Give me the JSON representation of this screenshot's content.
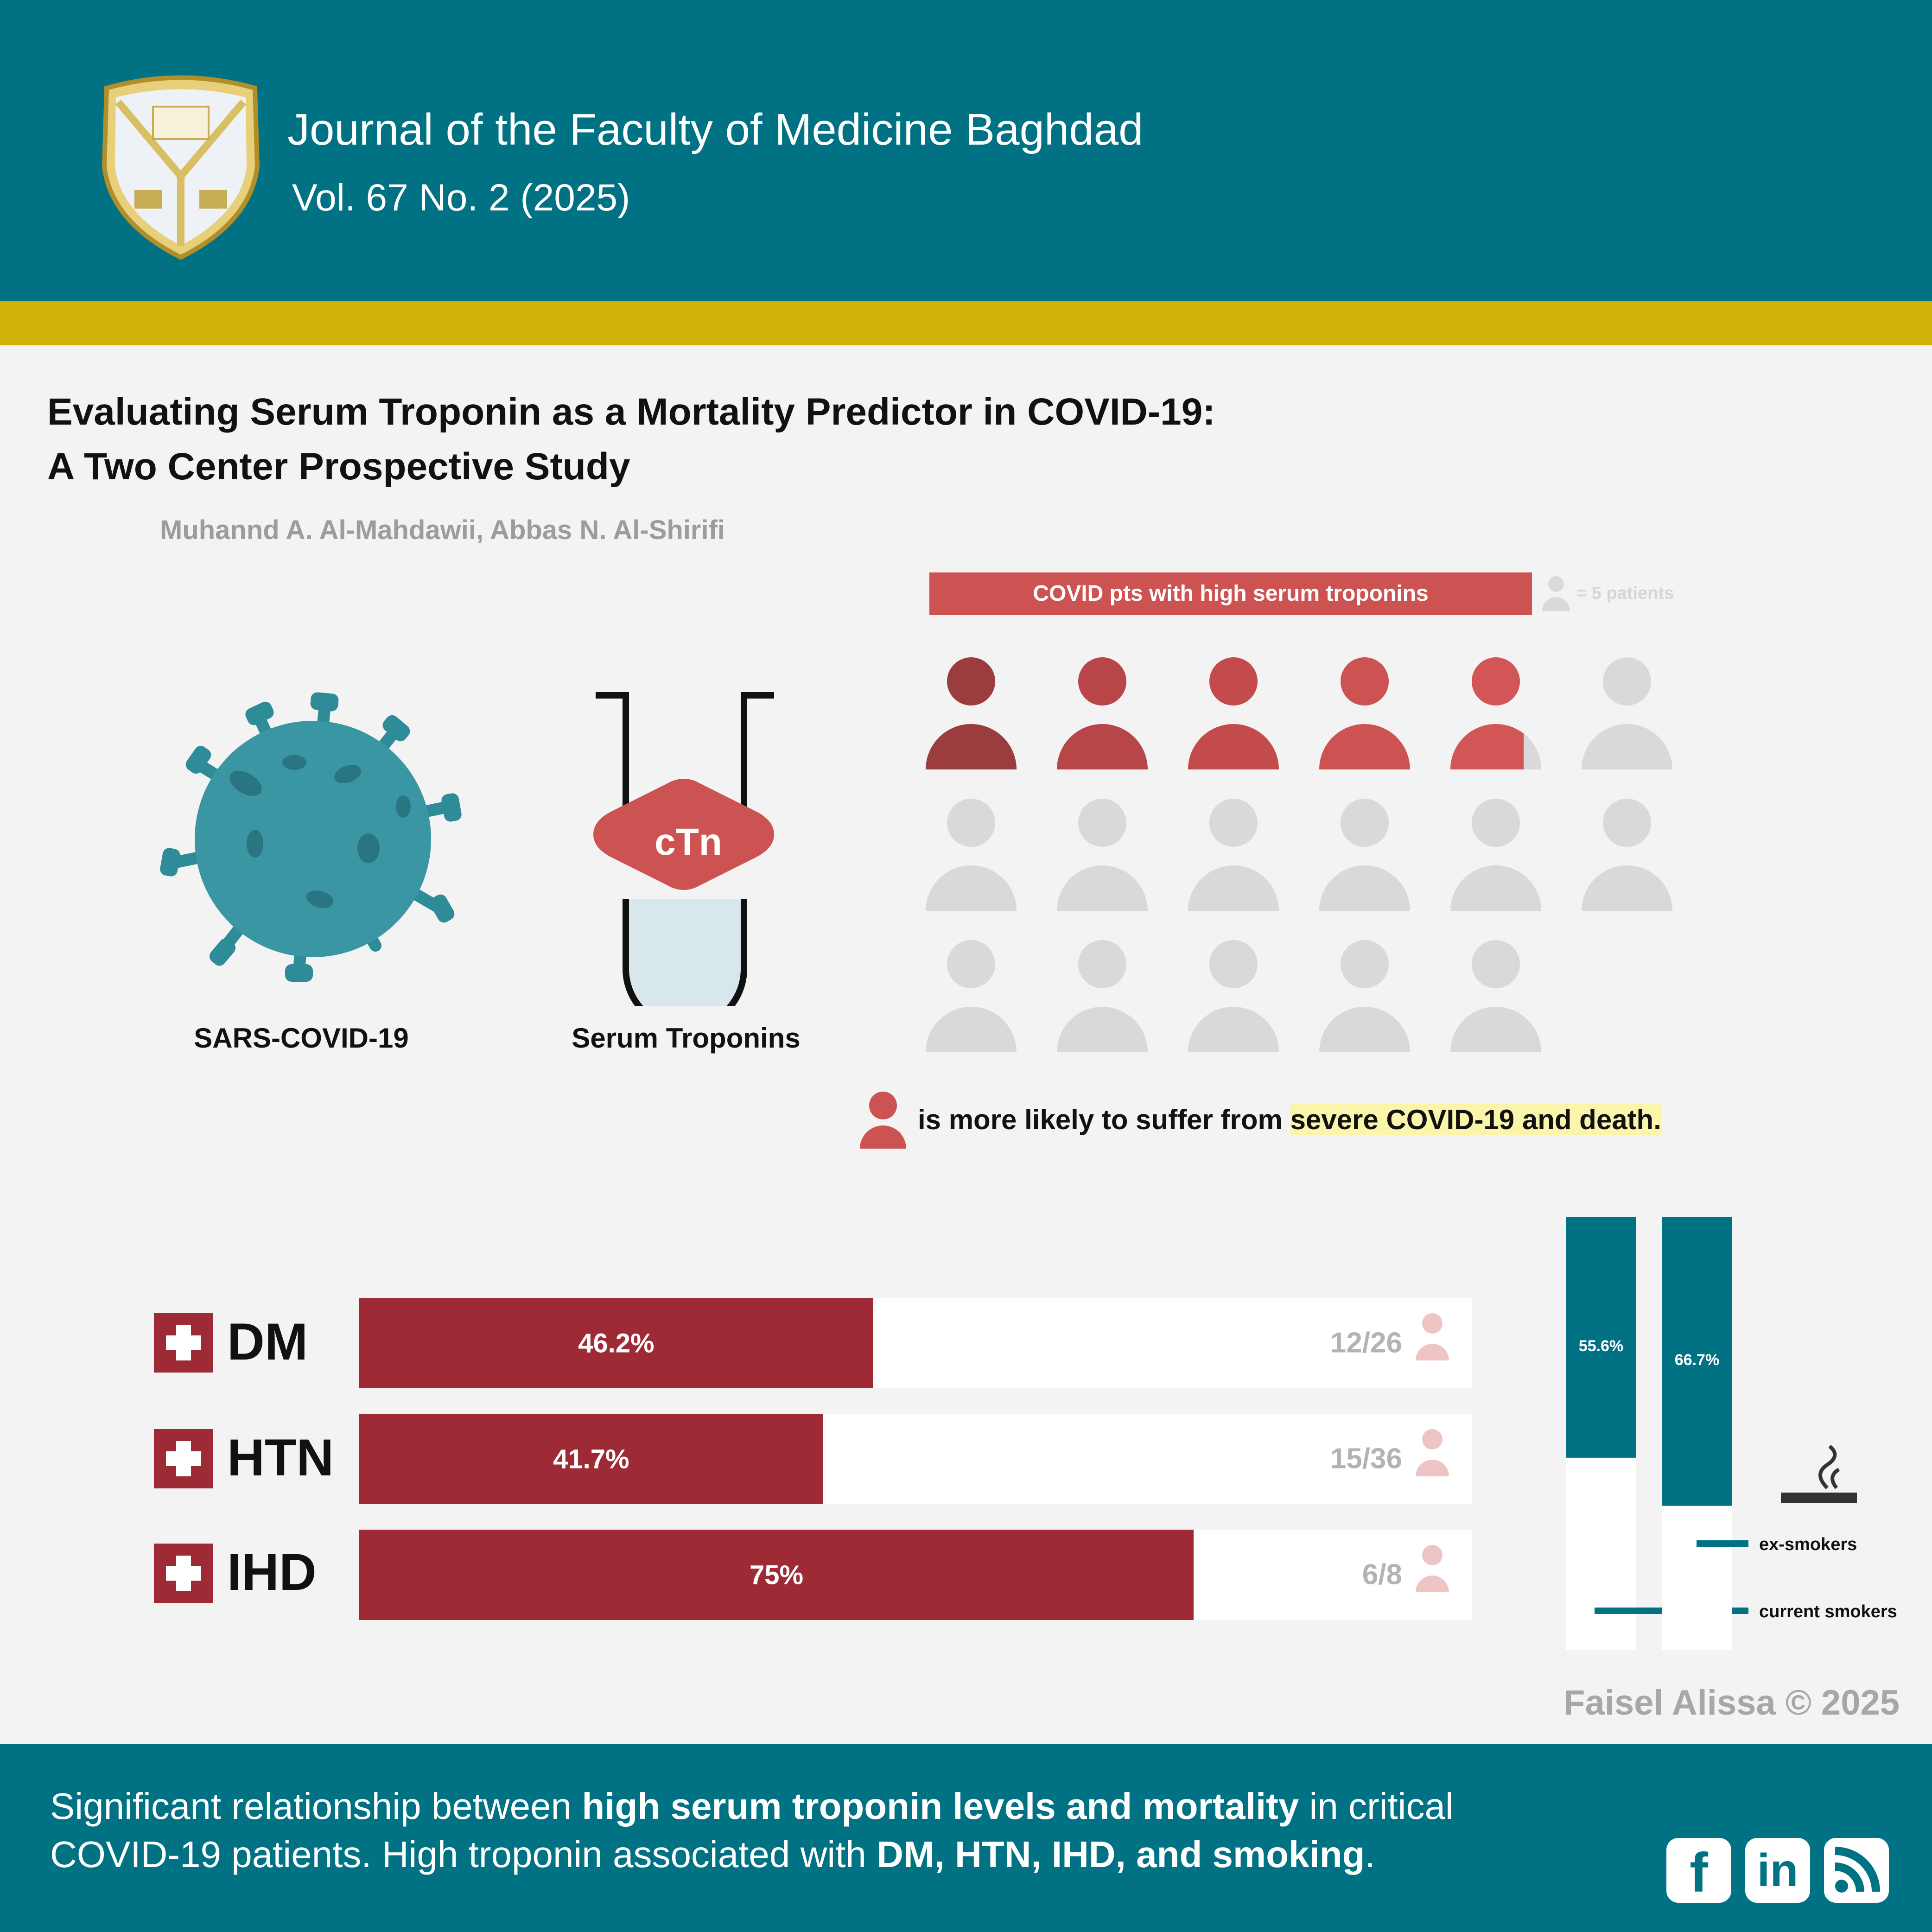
{
  "header": {
    "journal_title": "Journal of the Faculty of Medicine Baghdad",
    "volume": "Vol. 67 No. 2 (2025)",
    "background_color": "#007283",
    "accent_color": "#d1b10a"
  },
  "paper": {
    "title_line1": "Evaluating Serum Troponin as a Mortality Predictor in COVID-19:",
    "title_line2": "A Two Center Prospective Study",
    "authors": "Muhannd A. Al-Mahdawii, Abbas N. Al-Shirifi"
  },
  "illustrations": {
    "virus_label": "SARS-COVID-19",
    "tube_label": "Serum Troponins",
    "tube_badge": "cTn"
  },
  "chart_data": [
    {
      "type": "pictograph",
      "title": "COVID pts with high serum troponins",
      "legend": "= 5 patients",
      "patients_per_icon": 5,
      "total_icons": 17,
      "highlighted_icons": 4.5,
      "highlight_color": "#cd5352",
      "inactive_color": "#d9d9d9"
    },
    {
      "type": "bar",
      "orientation": "horizontal",
      "categories": [
        "DM",
        "HTN",
        "IHD"
      ],
      "values": [
        46.2,
        41.7,
        75
      ],
      "value_labels": [
        "46.2%",
        "41.7%",
        "75%"
      ],
      "counts": [
        "12/26",
        "15/36",
        "6/8"
      ],
      "xlim": [
        0,
        100
      ],
      "bar_color": "#9e2a36"
    },
    {
      "type": "bar",
      "orientation": "vertical",
      "categories": [
        "current smokers",
        "ex-smokers"
      ],
      "values": [
        55.6,
        66.7
      ],
      "value_labels": [
        "55.6%",
        "66.7%"
      ],
      "ylim": [
        0,
        100
      ],
      "bar_color": "#007283"
    }
  ],
  "takeaway": {
    "text_plain": "is more likely to suffer from ",
    "text_highlight": "severe COVID-19 and death."
  },
  "credit": "Faisel Alissa © 2025",
  "footer": {
    "p1": "Significant relationship between ",
    "b1": "high serum troponin levels and mortality",
    "p2": " in critical COVID-19 patients. High troponin associated with ",
    "b2": "DM, HTN, IHD, and smoking",
    "p3": "."
  },
  "social": {
    "icons": [
      "facebook-icon",
      "linkedin-icon",
      "rss-icon"
    ],
    "facebook": "f",
    "linkedin": "in"
  }
}
